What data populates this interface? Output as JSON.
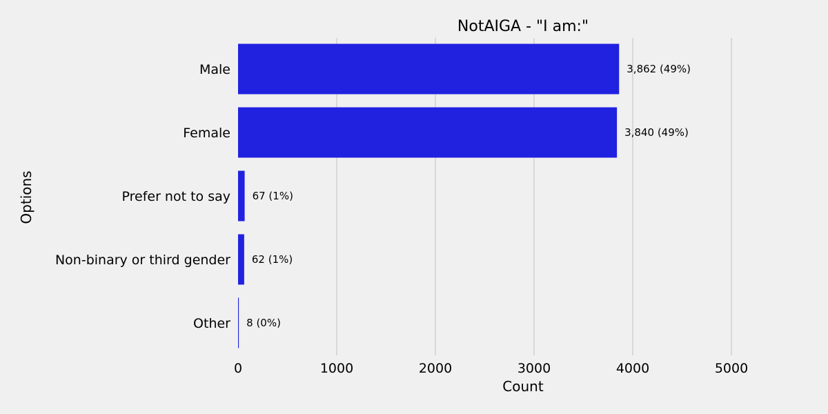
{
  "chart_data": {
    "type": "bar",
    "orientation": "horizontal",
    "title": "NotAIGA - \"I am:\"",
    "xlabel": "Count",
    "ylabel": "Options",
    "categories": [
      "Male",
      "Female",
      "Prefer not to say",
      "Non-binary or third gender",
      "Other"
    ],
    "values": [
      3862,
      3840,
      67,
      62,
      8
    ],
    "data_labels": [
      "3,862 (49%)",
      "3,840 (49%)",
      "67 (1%)",
      "62 (1%)",
      "8 (0%)"
    ],
    "xlim": [
      0,
      5000
    ],
    "xticks": [
      "0",
      "1000",
      "2000",
      "3000",
      "4000",
      "5000"
    ],
    "xtick_values": [
      0,
      1000,
      2000,
      3000,
      4000,
      5000
    ],
    "grid": "vertical",
    "colors": {
      "bar": "#2121e0",
      "background": "#f0f0f0",
      "grid": "#cbcbcb"
    }
  }
}
